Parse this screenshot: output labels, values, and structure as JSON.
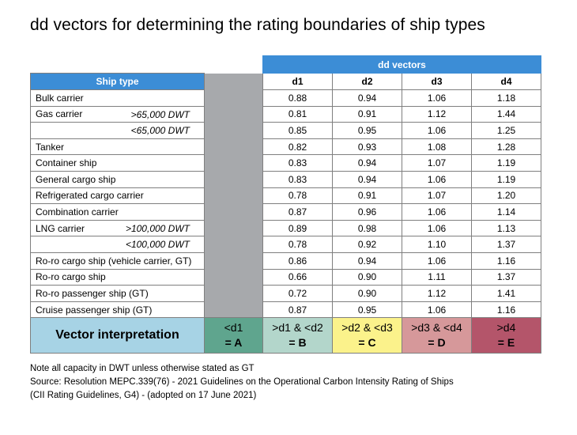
{
  "title": "dd vectors for determining the rating boundaries of ship types",
  "table": {
    "group_header": "dd vectors",
    "ship_type_header": "Ship type",
    "d_headers": [
      "d1",
      "d2",
      "d3",
      "d4"
    ],
    "rows": [
      {
        "name": "Bulk carrier",
        "sub": "",
        "values": [
          "0.88",
          "0.94",
          "1.06",
          "1.18"
        ]
      },
      {
        "name": "Gas carrier",
        "sub": ">65,000 DWT",
        "values": [
          "0.81",
          "0.91",
          "1.12",
          "1.44"
        ]
      },
      {
        "name": "",
        "sub": "<65,000 DWT",
        "values": [
          "0.85",
          "0.95",
          "1.06",
          "1.25"
        ]
      },
      {
        "name": "Tanker",
        "sub": "",
        "values": [
          "0.82",
          "0.93",
          "1.08",
          "1.28"
        ]
      },
      {
        "name": "Container ship",
        "sub": "",
        "values": [
          "0.83",
          "0.94",
          "1.07",
          "1.19"
        ]
      },
      {
        "name": "General cargo ship",
        "sub": "",
        "values": [
          "0.83",
          "0.94",
          "1.06",
          "1.19"
        ]
      },
      {
        "name": "Refrigerated cargo carrier",
        "sub": "",
        "values": [
          "0.78",
          "0.91",
          "1.07",
          "1.20"
        ]
      },
      {
        "name": "Combination carrier",
        "sub": "",
        "values": [
          "0.87",
          "0.96",
          "1.06",
          "1.14"
        ]
      },
      {
        "name": "LNG carrier",
        "sub": ">100,000 DWT",
        "values": [
          "0.89",
          "0.98",
          "1.06",
          "1.13"
        ]
      },
      {
        "name": "",
        "sub": "<100,000 DWT",
        "values": [
          "0.78",
          "0.92",
          "1.10",
          "1.37"
        ]
      },
      {
        "name": "Ro-ro cargo ship (vehicle carrier, GT)",
        "sub": "",
        "values": [
          "0.86",
          "0.94",
          "1.06",
          "1.16"
        ]
      },
      {
        "name": "Ro-ro cargo ship",
        "sub": "",
        "values": [
          "0.66",
          "0.90",
          "1.11",
          "1.37"
        ]
      },
      {
        "name": "Ro-ro passenger ship (GT)",
        "sub": "",
        "values": [
          "0.72",
          "0.90",
          "1.12",
          "1.41"
        ]
      },
      {
        "name": "Cruise passenger ship (GT)",
        "sub": "",
        "values": [
          "0.87",
          "0.95",
          "1.06",
          "1.16"
        ]
      }
    ],
    "interpretation": {
      "label": "Vector interpretation",
      "cells": [
        {
          "range": "<d1",
          "rating": "= A",
          "color": "#5fa58e"
        },
        {
          "range": ">d1 & <d2",
          "rating": "= B",
          "color": "#b3d6cb"
        },
        {
          "range": ">d2 & <d3",
          "rating": "= C",
          "color": "#fbf28b"
        },
        {
          "range": ">d3 & <d4",
          "rating": "= D",
          "color": "#d6989a"
        },
        {
          "range": ">d4",
          "rating": "= E",
          "color": "#b4556a"
        }
      ]
    }
  },
  "notes": [
    "Note all capacity in DWT unless otherwise stated as GT",
    "Source: Resolution MEPC.339(76) - 2021 Guidelines on the Operational Carbon Intensity Rating of Ships",
    "(CII Rating Guidelines, G4) - (adopted on 17 June 2021)"
  ],
  "colors": {
    "header_blue": "#3c8dd6",
    "gray_column": "#a7a9ac",
    "interp_label_bg": "#a7d3e5",
    "border": "#7f7f7f"
  }
}
